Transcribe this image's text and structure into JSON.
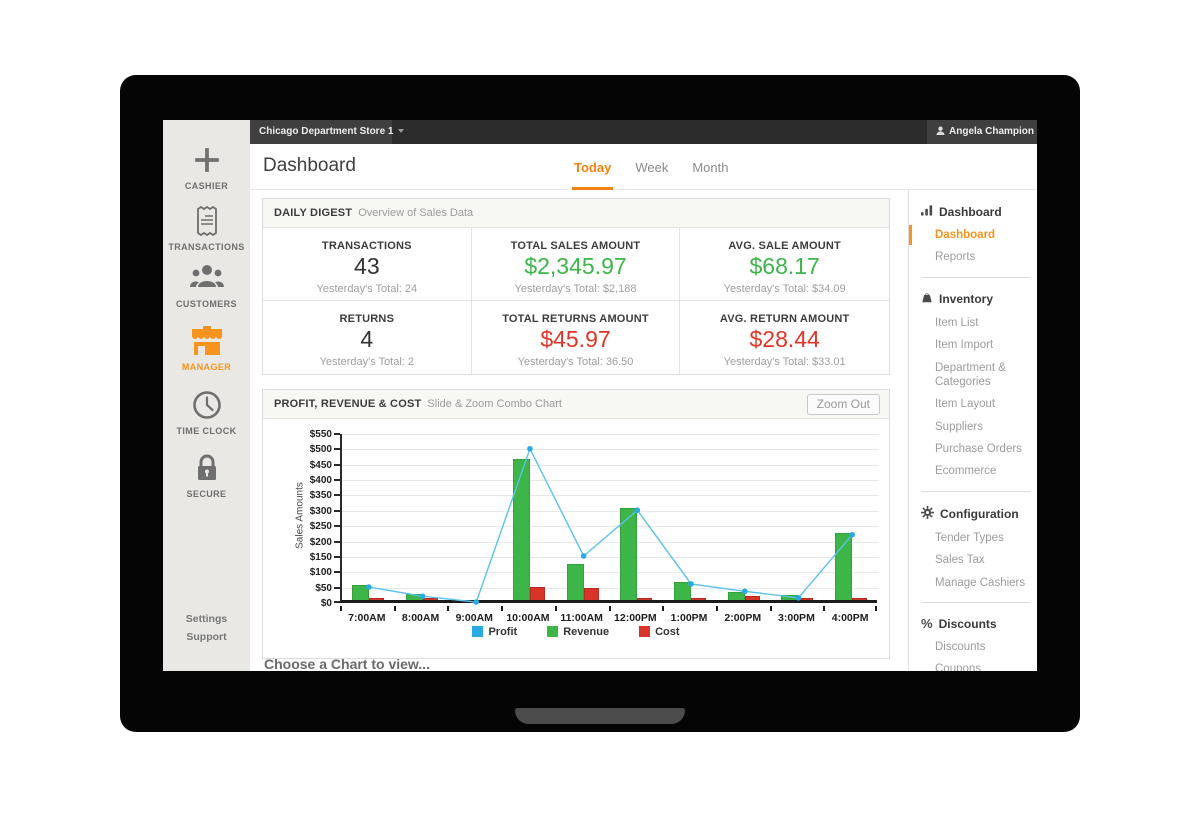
{
  "colors": {
    "accent": "#f7941d",
    "positive": "#3cb54a",
    "negative": "#df3526",
    "neutral_value": "#333333",
    "profit": "#29abe2",
    "revenue": "#3eb549",
    "cost": "#d8342a"
  },
  "topbar": {
    "store_selector": "Chicago Department Store 1",
    "user_name": "Angela Champion"
  },
  "left_sidebar": {
    "items": [
      {
        "label": "CASHIER",
        "icon": "plus-icon",
        "active": false
      },
      {
        "label": "TRANSACTIONS",
        "icon": "receipt-icon",
        "active": false
      },
      {
        "label": "CUSTOMERS",
        "icon": "customers-icon",
        "active": false
      },
      {
        "label": "MANAGER",
        "icon": "store-icon",
        "active": true
      },
      {
        "label": "TIME CLOCK",
        "icon": "clock-icon",
        "active": false
      },
      {
        "label": "SECURE",
        "icon": "lock-icon",
        "active": false
      }
    ],
    "footer_links": [
      {
        "label": "Settings"
      },
      {
        "label": "Support"
      }
    ]
  },
  "header": {
    "title": "Dashboard",
    "tabs": [
      {
        "label": "Today",
        "active": true
      },
      {
        "label": "Week",
        "active": false
      },
      {
        "label": "Month",
        "active": false
      }
    ]
  },
  "daily_digest": {
    "title": "DAILY DIGEST",
    "subtitle": "Overview of Sales Data",
    "stats": [
      {
        "label": "TRANSACTIONS",
        "value": "43",
        "sub": "Yesterday's Total: 24",
        "color": "#333333"
      },
      {
        "label": "TOTAL SALES AMOUNT",
        "value": "$2,345.97",
        "sub": "Yesterday's Total: $2,188",
        "color": "#3cb54a"
      },
      {
        "label": "AVG. SALE AMOUNT",
        "value": "$68.17",
        "sub": "Yesterday's Total: $34.09",
        "color": "#3cb54a"
      },
      {
        "label": "RETURNS",
        "value": "4",
        "sub": "Yesterday's Total: 2",
        "color": "#333333"
      },
      {
        "label": "TOTAL RETURNS AMOUNT",
        "value": "$45.97",
        "sub": "Yesterday's Total: 36.50",
        "color": "#df3526"
      },
      {
        "label": "AVG. RETURN AMOUNT",
        "value": "$28.44",
        "sub": "Yesterday's Total: $33.01",
        "color": "#df3526"
      }
    ]
  },
  "chart_panel": {
    "title": "PROFIT, REVENUE & COST",
    "subtitle": "Slide & Zoom Combo Chart",
    "zoom_out_label": "Zoom Out"
  },
  "chart_data": {
    "type": "combo",
    "categories": [
      "7:00AM",
      "8:00AM",
      "9:00AM",
      "10:00AM",
      "11:00AM",
      "12:00PM",
      "1:00PM",
      "2:00PM",
      "3:00PM",
      "4:00PM"
    ],
    "series": [
      {
        "name": "Profit",
        "type": "line",
        "color": "#29abe2",
        "values": [
          52,
          22,
          3,
          502,
          153,
          302,
          62,
          38,
          17,
          222
        ]
      },
      {
        "name": "Revenue",
        "type": "bar",
        "color": "#3eb549",
        "values": [
          48,
          20,
          0,
          460,
          117,
          298,
          58,
          25,
          15,
          218
        ]
      },
      {
        "name": "Cost",
        "type": "bar",
        "color": "#d8342a",
        "values": [
          4,
          3,
          0,
          42,
          38,
          5,
          5,
          12,
          4,
          5
        ]
      }
    ],
    "ylabel": "Sales Amounts",
    "ylim": [
      0,
      550
    ],
    "ytick_step": 50,
    "ytick_prefix": "$",
    "grid": true,
    "legend_position": "bottom"
  },
  "footer_text": "Choose a Chart to view...",
  "right_nav": {
    "sections": [
      {
        "header": "Dashboard",
        "icon": "bar-chart-icon",
        "items": [
          {
            "label": "Dashboard",
            "active": true
          },
          {
            "label": "Reports",
            "active": false
          }
        ]
      },
      {
        "header": "Inventory",
        "icon": "inventory-icon",
        "items": [
          {
            "label": "Item List",
            "active": false
          },
          {
            "label": "Item Import",
            "active": false
          },
          {
            "label": "Department & Categories",
            "active": false
          },
          {
            "label": "Item Layout",
            "active": false
          },
          {
            "label": "Suppliers",
            "active": false
          },
          {
            "label": "Purchase Orders",
            "active": false
          },
          {
            "label": "Ecommerce",
            "active": false
          }
        ]
      },
      {
        "header": "Configuration",
        "icon": "gear-icon",
        "items": [
          {
            "label": "Tender Types",
            "active": false
          },
          {
            "label": "Sales Tax",
            "active": false
          },
          {
            "label": "Manage Cashiers",
            "active": false
          }
        ]
      },
      {
        "header": "Discounts",
        "icon": "percent-icon",
        "items": [
          {
            "label": "Discounts",
            "active": false
          },
          {
            "label": "Coupons",
            "active": false
          }
        ]
      }
    ]
  }
}
